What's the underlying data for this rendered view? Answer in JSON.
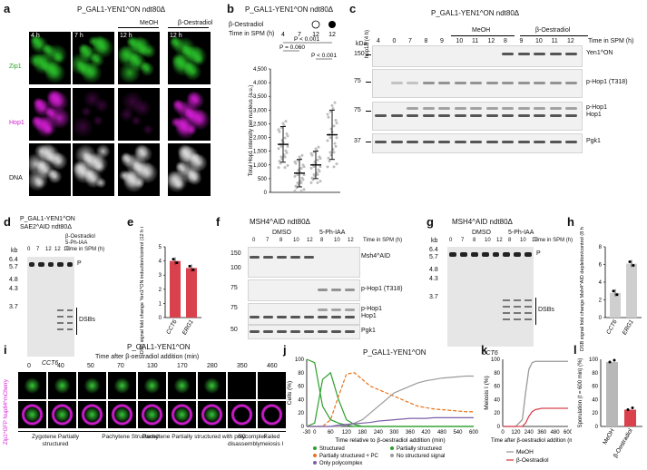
{
  "panels": {
    "a": "a",
    "b": "b",
    "c": "c",
    "d": "d",
    "e": "e",
    "f": "f",
    "g": "g",
    "h": "h",
    "i": "i",
    "j": "j",
    "k": "k",
    "l": "l"
  },
  "genotype": {
    "a": "P_GAL1-YEN1^ON ndt80Δ",
    "b": "P_GAL1-YEN1^ON ndt80Δ",
    "c": "P_GAL1-YEN1^ON ndt80Δ",
    "c_left": "hop1Δ (4 h)",
    "d1": "P_GAL1-YEN1^ON",
    "d2": "SAE2^AID ndt80Δ",
    "f": "MSH4^AID ndt80Δ",
    "g": "MSH4^AID ndt80Δ",
    "i": "P_GAL1-YEN1^ON",
    "j": "P_GAL1-YEN1^ON"
  },
  "a": {
    "cond_meoh": "MeOH",
    "cond_estr": "β-Oestradiol",
    "times": [
      "4 h",
      "7 h",
      "12 h",
      "12 h"
    ],
    "rows": [
      "Zip1",
      "Hop1",
      "DNA"
    ]
  },
  "b": {
    "estradiol_label": "β-Oestradiol",
    "time_label": "Time in SPM (h)",
    "times": [
      "4",
      "7",
      "12",
      "12"
    ],
    "p1": "P < 0.001",
    "p2": "P = 0.060",
    "p3": "P < 0.001",
    "ylabel": "Total Hop1 intensity per nucleus (a.u.)",
    "yticks": [
      "0",
      "500",
      "1,000",
      "1,500",
      "2,000",
      "2,500",
      "3,000",
      "3,500",
      "4,000",
      "4,500"
    ]
  },
  "c": {
    "kda": "kDa",
    "times": [
      "4",
      "0",
      "7",
      "8",
      "9",
      "10",
      "11",
      "12",
      "8",
      "9",
      "10",
      "11",
      "12"
    ],
    "meoh": "MeOH",
    "estr": "β-Oestradiol",
    "time_label": "Time in SPM (h)",
    "markers": [
      "150",
      "75",
      "75",
      "37"
    ],
    "bands": [
      "Yen1^ON",
      "p-Hop1 (T318)",
      "p-Hop1",
      "Hop1",
      "Pgk1"
    ]
  },
  "d": {
    "estr": "β-Oestradiol",
    "ph": "5-Ph-IAA",
    "time_label": "Time in SPM (h)",
    "times": [
      "0",
      "7",
      "12",
      "12",
      "12"
    ],
    "kb": "kb",
    "markers": [
      "6.4",
      "5.7",
      "4.8",
      "4.3",
      "3.7"
    ],
    "P": "P",
    "DSBs": "DSBs",
    "gene": "CCT6"
  },
  "e": {
    "ylabel": "DSB signal fold change Yen1^ON induction/control (12 h in SPM)",
    "yticks": [
      "0",
      "1",
      "2",
      "3",
      "4",
      "5"
    ],
    "cats": [
      "CCT6",
      "ERG1"
    ]
  },
  "f": {
    "dmso": "DMSO",
    "ph": "5-Ph-IAA",
    "times": [
      "0",
      "7",
      "8",
      "10",
      "12",
      "8",
      "10",
      "12"
    ],
    "time_label": "Time in SPM (h)",
    "markers": [
      "150",
      "100",
      "75",
      "75",
      "50"
    ],
    "bands": [
      "Msh4^AID",
      "p-Hop1 (T318)",
      "p-Hop1",
      "Hop1",
      "Pgk1"
    ]
  },
  "g": {
    "dmso": "DMSO",
    "ph": "5-Ph-IAA",
    "times": [
      "0",
      "7",
      "8",
      "10",
      "12",
      "8",
      "10",
      "12"
    ],
    "time_label": "Time in SPM (h)",
    "kb": "kb",
    "markers": [
      "6.4",
      "5.7",
      "4.8",
      "4.3",
      "3.7"
    ],
    "P": "P",
    "DSBs": "DSBs",
    "gene": "CCT6"
  },
  "h": {
    "ylabel": "DSB signal fold change Msh4^AID depletion/control (8 h SPM)",
    "yticks": [
      "0",
      "2",
      "4",
      "6",
      "8"
    ],
    "cats": [
      "CCT6",
      "ERG1"
    ]
  },
  "i": {
    "time_title": "Time after β-oestradiol addition (min)",
    "times": [
      "0",
      "40",
      "50",
      "70",
      "130",
      "170",
      "280",
      "350",
      "460"
    ],
    "rowlabel": "Zip1^GFP Nup84^mCherry",
    "stages": [
      "Zygotene Partially structured",
      "Pachytene Structured",
      "Pachytene Partially structured with polycomplex",
      "SC disassembly",
      "Failed meiosis I"
    ]
  },
  "j": {
    "ylabel": "Cells (%)",
    "xlabel": "Time relative to β-oestradiol addition (min)",
    "legend": [
      "Structured",
      "Partially structured",
      "Partially structured + PC",
      "No structured signal",
      "Only polycomplex"
    ]
  },
  "k": {
    "ylabel": "Meiosis I (%)",
    "xlabel": "Time after β-oestradiol addition (min)",
    "legend": [
      "MeOH",
      "β-Oestradiol"
    ]
  },
  "l": {
    "ylabel": "Sporulation (t = 600 min) (%)",
    "cats": [
      "MeOH",
      "β-Oestradiol"
    ]
  },
  "colors": {
    "green": "#2ca02c",
    "orange": "#e8731a",
    "grey": "#9a9a9a",
    "purple": "#7b5ea7",
    "red": "#d9414d",
    "magenta": "#d61ad6"
  },
  "chart_data": [
    {
      "type": "scatter",
      "panel": "b",
      "categories": [
        "4",
        "7",
        "12 MeOH",
        "12 β-Oestradiol"
      ],
      "means": [
        1750,
        700,
        1000,
        2100
      ],
      "errors": [
        650,
        500,
        500,
        900
      ],
      "ylim": [
        0,
        4500
      ]
    },
    {
      "type": "bar",
      "panel": "e",
      "categories": [
        "CCT6",
        "ERG1"
      ],
      "values": [
        4.0,
        3.5
      ],
      "ylim": [
        0,
        5
      ]
    },
    {
      "type": "bar",
      "panel": "h",
      "categories": [
        "CCT6",
        "ERG1"
      ],
      "values": [
        2.8,
        6.1
      ],
      "ylim": [
        0,
        8
      ]
    },
    {
      "type": "line",
      "panel": "j",
      "x": [
        -30,
        0,
        30,
        60,
        90,
        120,
        150,
        180,
        210,
        240,
        270,
        300,
        330,
        360,
        390,
        420,
        450,
        480,
        510,
        540,
        570,
        600
      ],
      "xticks": [
        -30,
        0,
        60,
        120,
        180,
        240,
        300,
        360,
        420,
        480,
        540,
        600
      ],
      "ylim": [
        0,
        100
      ],
      "series": [
        {
          "name": "Structured",
          "values": [
            100,
            95,
            30,
            10,
            5,
            2,
            0,
            0,
            0,
            0,
            0,
            0,
            0,
            0,
            0,
            0,
            0,
            0,
            0,
            0,
            0,
            0
          ]
        },
        {
          "name": "Partially structured",
          "values": [
            0,
            5,
            70,
            80,
            40,
            10,
            3,
            0,
            0,
            0,
            0,
            0,
            0,
            0,
            0,
            0,
            0,
            0,
            0,
            0,
            0,
            0
          ]
        },
        {
          "name": "Partially structured + PC",
          "values": [
            0,
            0,
            0,
            10,
            45,
            78,
            80,
            70,
            60,
            55,
            50,
            45,
            40,
            35,
            30,
            28,
            26,
            25,
            24,
            23,
            22,
            22
          ]
        },
        {
          "name": "No structured signal",
          "values": [
            0,
            0,
            0,
            0,
            0,
            2,
            5,
            10,
            20,
            30,
            40,
            50,
            55,
            60,
            65,
            68,
            70,
            72,
            73,
            74,
            75,
            75
          ]
        },
        {
          "name": "Only polycomplex",
          "values": [
            0,
            0,
            0,
            0,
            2,
            3,
            4,
            5,
            6,
            8,
            9,
            10,
            11,
            12,
            12,
            12,
            13,
            13,
            13,
            13,
            13,
            13
          ]
        }
      ]
    },
    {
      "type": "line",
      "panel": "k",
      "x": [
        0,
        120,
        180,
        210,
        240,
        270,
        300,
        360,
        420,
        480,
        540,
        600
      ],
      "xticks": [
        0,
        120,
        240,
        360,
        480,
        600
      ],
      "ylim": [
        0,
        100
      ],
      "series": [
        {
          "name": "MeOH",
          "values": [
            0,
            0,
            10,
            50,
            85,
            95,
            97,
            97,
            97,
            97,
            97,
            97
          ]
        },
        {
          "name": "β-Oestradiol",
          "values": [
            0,
            0,
            0,
            5,
            15,
            22,
            25,
            27,
            27,
            27,
            27,
            27
          ]
        }
      ]
    },
    {
      "type": "bar",
      "panel": "l",
      "categories": [
        "MeOH",
        "β-Oestradiol"
      ],
      "values": [
        96,
        25
      ],
      "ylim": [
        0,
        100
      ]
    }
  ]
}
